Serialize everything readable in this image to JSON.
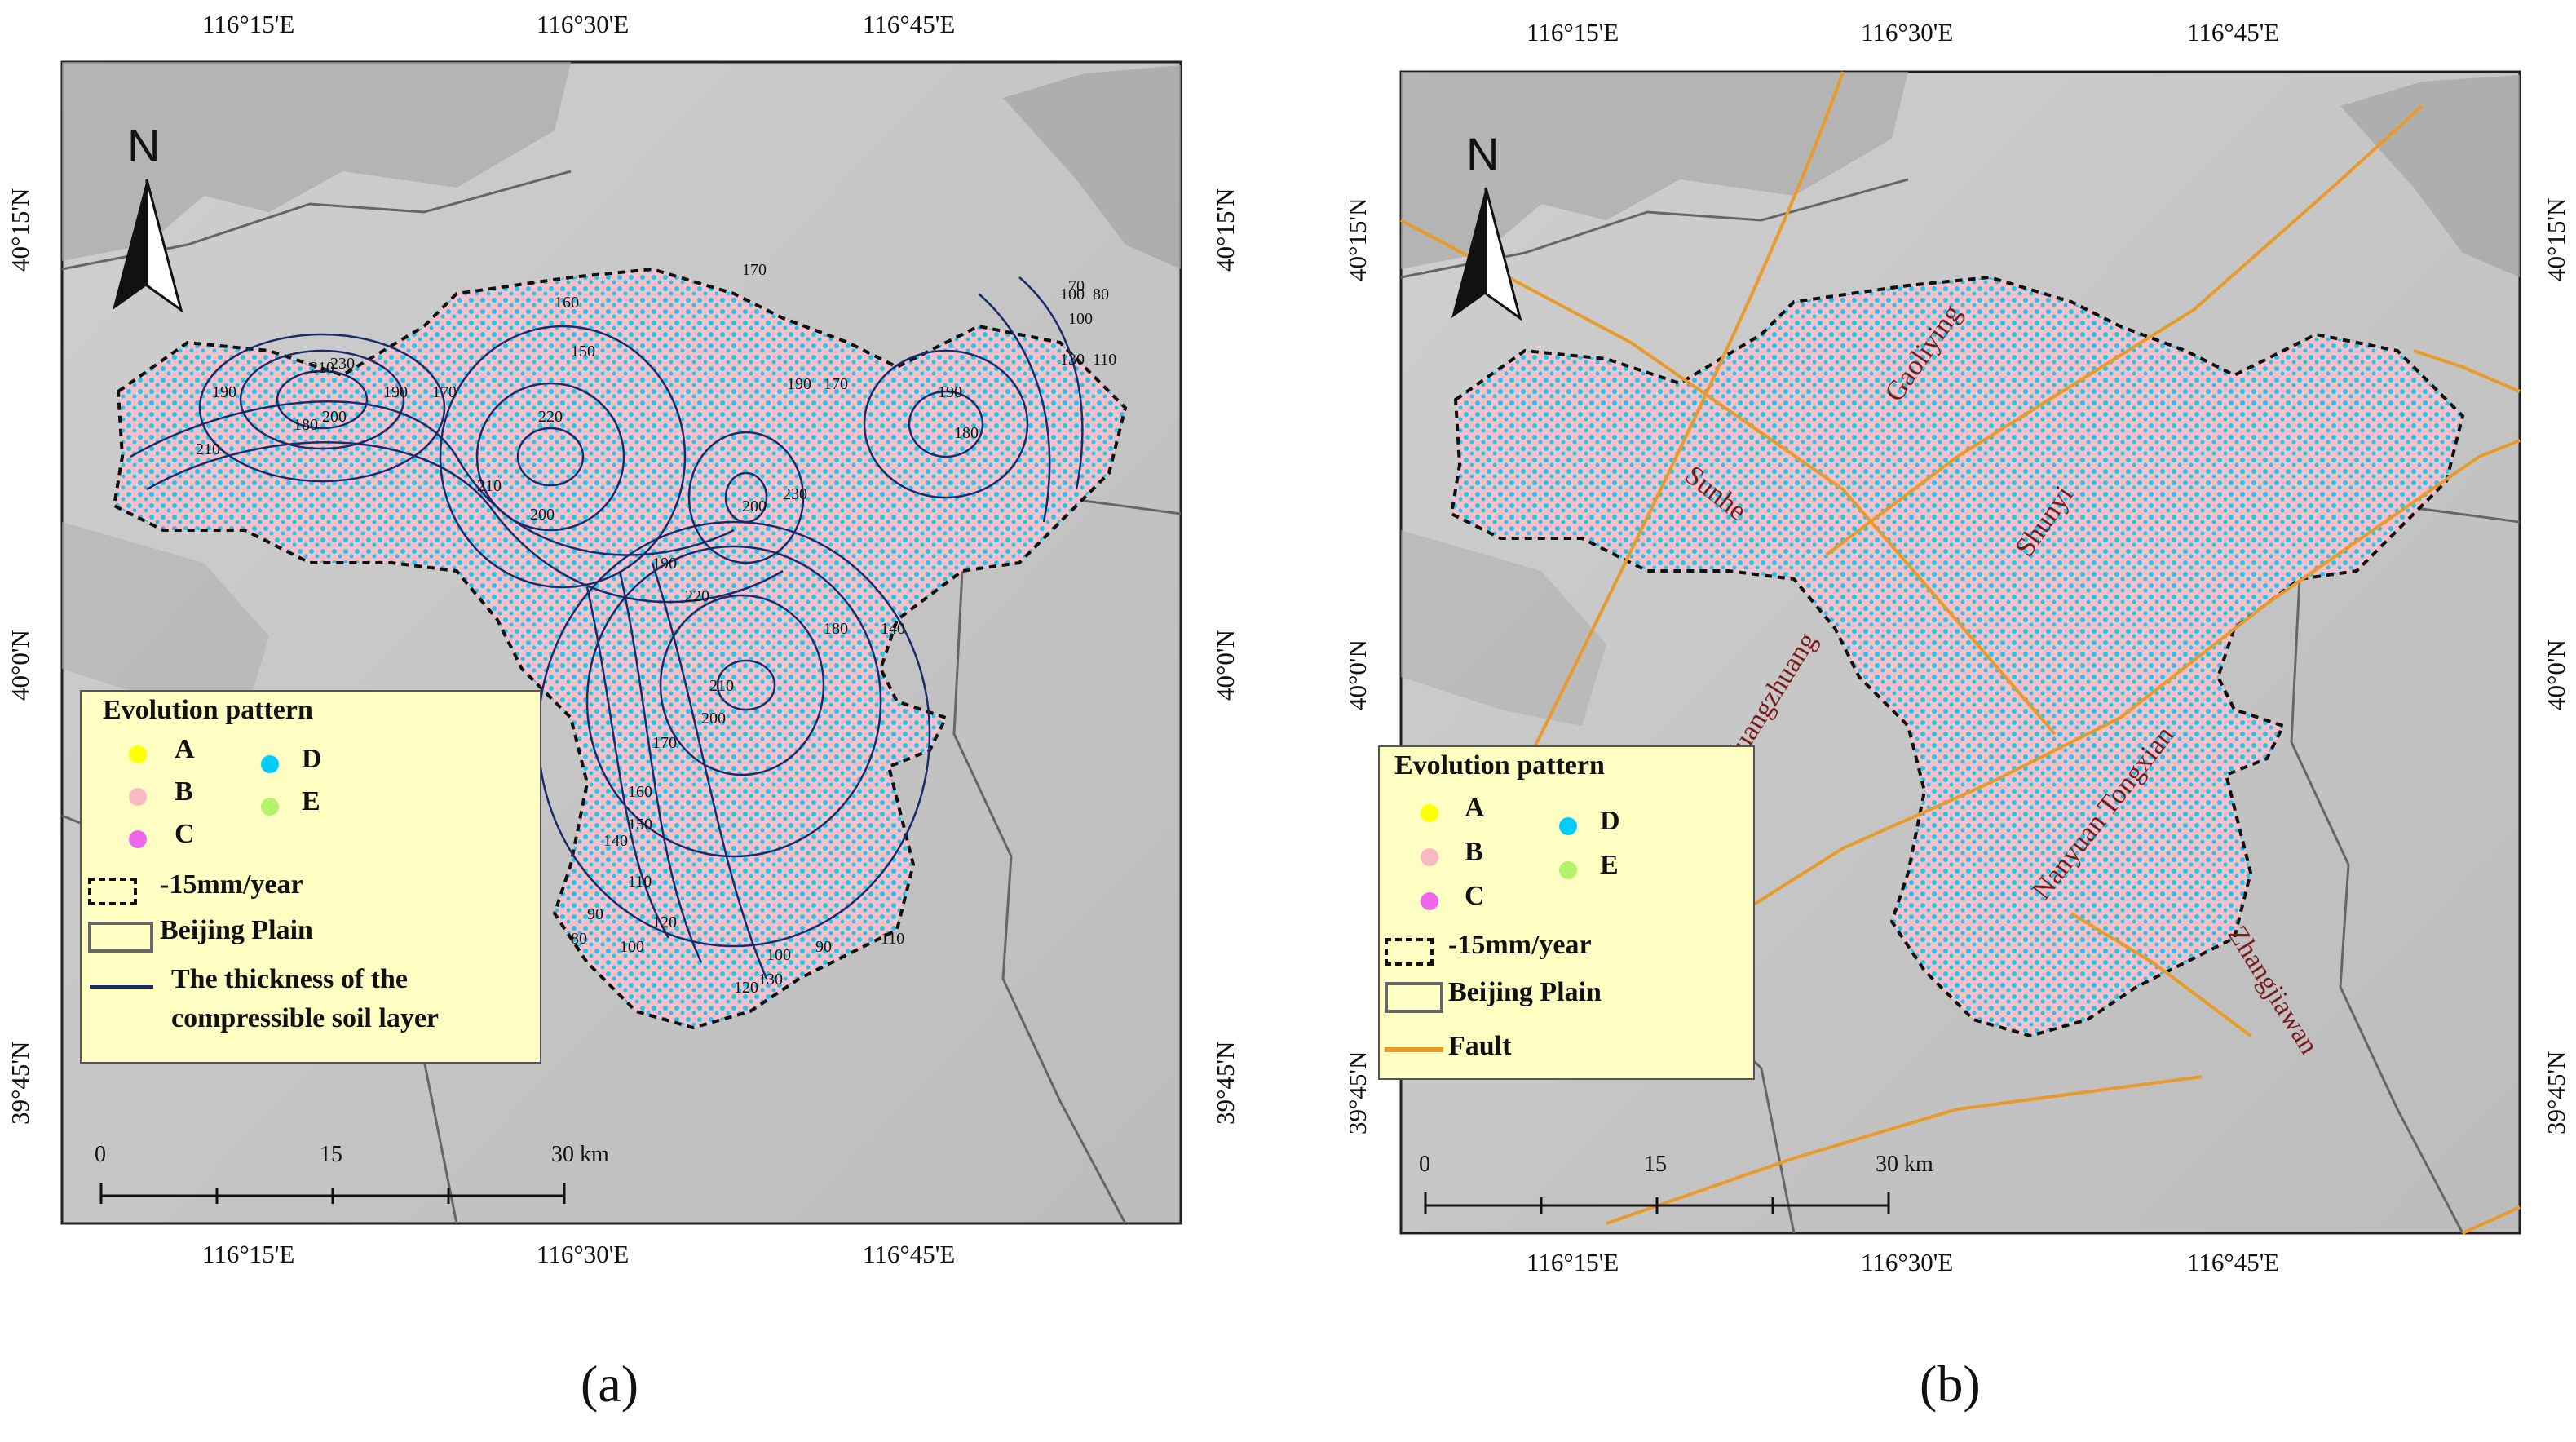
{
  "panels": [
    {
      "id": "a",
      "caption": "(a)",
      "top_lon_ticks": [
        "116°15'E",
        "116°30'E",
        "116°45'E"
      ],
      "bottom_lon_ticks": [
        "116°15'E",
        "116°30'E",
        "116°45'E"
      ],
      "lat_ticks": [
        "40°15'N",
        "40°0'N",
        "39°45'N"
      ],
      "north_label": "N",
      "legend": {
        "title": "Evolution pattern",
        "patterns": [
          {
            "label": "A",
            "color": "#ffff00"
          },
          {
            "label": "B",
            "color": "#f9b9c2"
          },
          {
            "label": "C",
            "color": "#ee66ee"
          },
          {
            "label": "D",
            "color": "#00ccff"
          },
          {
            "label": "E",
            "color": "#b3f26b"
          }
        ],
        "rate_label": "-15mm/year",
        "plain_label": "Beijing Plain",
        "extra_label_1": "The thickness of the",
        "extra_label_2": "compressible soil layer"
      },
      "scale": {
        "labels": [
          "0",
          "15",
          "30 km"
        ]
      },
      "contour_labels": [
        "210",
        "190",
        "180",
        "210",
        "200",
        "230",
        "190",
        "170",
        "160",
        "150",
        "220",
        "210",
        "200",
        "170",
        "190",
        "200",
        "230",
        "170",
        "190",
        "180",
        "130",
        "110",
        "100",
        "100",
        "70",
        "80",
        "190",
        "220",
        "210",
        "200",
        "180",
        "140",
        "170",
        "160",
        "150",
        "140",
        "120",
        "110",
        "90",
        "80",
        "100",
        "120",
        "130",
        "110",
        "90",
        "100"
      ]
    },
    {
      "id": "b",
      "caption": "(b)",
      "top_lon_ticks": [
        "116°15'E",
        "116°30'E",
        "116°45'E"
      ],
      "bottom_lon_ticks": [
        "116°15'E",
        "116°30'E",
        "116°45'E"
      ],
      "lat_ticks": [
        "40°15'N",
        "40°0'N",
        "39°45'N"
      ],
      "north_label": "N",
      "legend": {
        "title": "Evolution pattern",
        "patterns": [
          {
            "label": "A",
            "color": "#ffff00"
          },
          {
            "label": "B",
            "color": "#f9b9c2"
          },
          {
            "label": "C",
            "color": "#ee66ee"
          },
          {
            "label": "D",
            "color": "#00ccff"
          },
          {
            "label": "E",
            "color": "#b3f26b"
          }
        ],
        "rate_label": "-15mm/year",
        "plain_label": "Beijing Plain",
        "fault_label": "Fault"
      },
      "scale": {
        "labels": [
          "0",
          "15",
          "30 km"
        ]
      },
      "faults": [
        "Gaoliying",
        "Sunhe",
        "Shunyi",
        "Huangzhuang",
        "Nanyuan Tongxian",
        "Zhangjiawan"
      ]
    }
  ],
  "colors": {
    "fault": "#e89b2a",
    "contour": "#1b2a6b",
    "plain_border": "#666666",
    "terrain": "#c8c8c8"
  }
}
